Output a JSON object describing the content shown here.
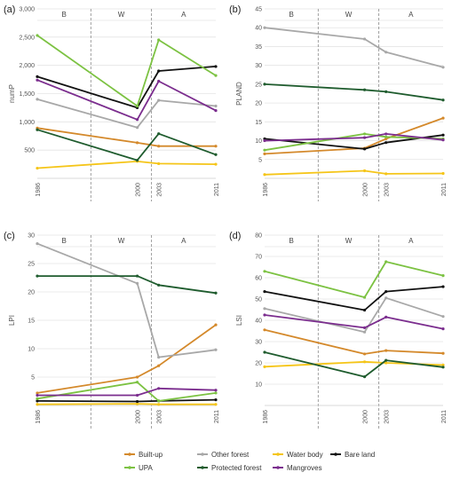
{
  "legend": {
    "items": [
      {
        "label": "Built-up",
        "color": "#d4892b"
      },
      {
        "label": "Other forest",
        "color": "#a8a8a8"
      },
      {
        "label": "Water body",
        "color": "#f5c518"
      },
      {
        "label": "Bare land",
        "color": "#111111"
      },
      {
        "label": "UPA",
        "color": "#7cc242"
      },
      {
        "label": "Protected forest",
        "color": "#1f5c2e"
      },
      {
        "label": "Mangroves",
        "color": "#7b2d8e"
      }
    ]
  },
  "chart_data": [
    {
      "type": "line",
      "panel_label": "(a)",
      "ylabel": "numP",
      "periods": [
        "B",
        "W",
        "A"
      ],
      "period_boundaries": [
        1993.5,
        2002
      ],
      "x_ticks": [
        "1986",
        "2000",
        "2003",
        "2011"
      ],
      "x": [
        1986,
        2000,
        2003,
        2011
      ],
      "xlim": [
        1986,
        2011
      ],
      "ylim": [
        0,
        3000
      ],
      "y_ticks": [
        500,
        1000,
        1500,
        2000,
        2500,
        3000
      ],
      "y_tick_labels": [
        "500",
        "1,000",
        "1,500",
        "2,000",
        "2,500",
        "3,000"
      ],
      "series": [
        {
          "name": "Built-up",
          "values": [
            890,
            630,
            570,
            570
          ]
        },
        {
          "name": "Other forest",
          "values": [
            1400,
            900,
            1380,
            1280
          ]
        },
        {
          "name": "Water body",
          "values": [
            180,
            300,
            260,
            250
          ]
        },
        {
          "name": "Bare land",
          "values": [
            1800,
            1250,
            1900,
            1980
          ]
        },
        {
          "name": "UPA",
          "values": [
            2530,
            1280,
            2450,
            1820
          ]
        },
        {
          "name": "Protected forest",
          "values": [
            860,
            320,
            790,
            420
          ]
        },
        {
          "name": "Mangroves",
          "values": [
            1740,
            1040,
            1720,
            1200
          ]
        }
      ]
    },
    {
      "type": "line",
      "panel_label": "(b)",
      "ylabel": "PLAND",
      "periods": [
        "B",
        "W",
        "A"
      ],
      "period_boundaries": [
        1993.5,
        2002
      ],
      "x_ticks": [
        "1986",
        "2000",
        "2003",
        "2011"
      ],
      "x": [
        1986,
        2000,
        2003,
        2011
      ],
      "xlim": [
        1986,
        2011
      ],
      "ylim": [
        0,
        45
      ],
      "y_ticks": [
        5,
        10,
        15,
        20,
        25,
        30,
        35,
        40,
        45
      ],
      "y_tick_labels": [
        "5",
        "10",
        "15",
        "20",
        "25",
        "30",
        "35",
        "40",
        "45"
      ],
      "series": [
        {
          "name": "Built-up",
          "values": [
            6.5,
            8,
            10.5,
            16
          ]
        },
        {
          "name": "Other forest",
          "values": [
            40,
            37,
            33.5,
            29.5
          ]
        },
        {
          "name": "Water body",
          "values": [
            1,
            2,
            1.2,
            1.3
          ]
        },
        {
          "name": "Bare land",
          "values": [
            10.5,
            7.8,
            9.5,
            11.5
          ]
        },
        {
          "name": "UPA",
          "values": [
            7.5,
            11.8,
            11,
            10.5
          ]
        },
        {
          "name": "Protected forest",
          "values": [
            25,
            23.5,
            23,
            20.8
          ]
        },
        {
          "name": "Mangroves",
          "values": [
            10,
            10.8,
            11.8,
            10.2
          ]
        }
      ]
    },
    {
      "type": "line",
      "panel_label": "(c)",
      "ylabel": "LPI",
      "periods": [
        "B",
        "W",
        "A"
      ],
      "period_boundaries": [
        1993.5,
        2002
      ],
      "x_ticks": [
        "1986",
        "2000",
        "2003",
        "2011"
      ],
      "x": [
        1986,
        2000,
        2003,
        2011
      ],
      "xlim": [
        1986,
        2011
      ],
      "ylim": [
        0,
        30
      ],
      "y_ticks": [
        5,
        10,
        15,
        20,
        25,
        30
      ],
      "y_tick_labels": [
        "5",
        "10",
        "15",
        "20",
        "25",
        "30"
      ],
      "series": [
        {
          "name": "Built-up",
          "values": [
            2.2,
            5,
            7,
            14.2
          ]
        },
        {
          "name": "Other forest",
          "values": [
            28.5,
            21.5,
            8.5,
            9.8
          ]
        },
        {
          "name": "Water body",
          "values": [
            0.2,
            0.3,
            0.2,
            0.2
          ]
        },
        {
          "name": "Bare land",
          "values": [
            0.8,
            0.7,
            0.8,
            1
          ]
        },
        {
          "name": "UPA",
          "values": [
            1.2,
            4.1,
            0.8,
            2.2
          ]
        },
        {
          "name": "Protected forest",
          "values": [
            22.8,
            22.8,
            21.2,
            19.8
          ]
        },
        {
          "name": "Mangroves",
          "values": [
            1.8,
            1.8,
            3,
            2.7
          ]
        }
      ]
    },
    {
      "type": "line",
      "panel_label": "(d)",
      "ylabel": "LSI",
      "periods": [
        "B",
        "W",
        "A"
      ],
      "period_boundaries": [
        1993.5,
        2002
      ],
      "x_ticks": [
        "1986",
        "2000",
        "2003",
        "2011"
      ],
      "x": [
        1986,
        2000,
        2003,
        2011
      ],
      "xlim": [
        1986,
        2011
      ],
      "ylim": [
        0,
        80
      ],
      "y_ticks": [
        10,
        20,
        30,
        40,
        50,
        60,
        70,
        80
      ],
      "y_tick_labels": [
        "10",
        "20",
        "30",
        "40",
        "50",
        "60",
        "70",
        "80"
      ],
      "series": [
        {
          "name": "Built-up",
          "values": [
            35.5,
            24.2,
            25.8,
            24.5
          ]
        },
        {
          "name": "Other forest",
          "values": [
            45.5,
            34.5,
            50.5,
            41.8
          ]
        },
        {
          "name": "Water body",
          "values": [
            18.2,
            20.5,
            20,
            19
          ]
        },
        {
          "name": "Bare land",
          "values": [
            53.5,
            44.8,
            53.5,
            55.8
          ]
        },
        {
          "name": "UPA",
          "values": [
            63,
            50.8,
            67.5,
            61
          ]
        },
        {
          "name": "Protected forest",
          "values": [
            25,
            13.5,
            21.2,
            18
          ]
        },
        {
          "name": "Mangroves",
          "values": [
            42.5,
            36.5,
            41.5,
            36
          ]
        }
      ]
    }
  ]
}
